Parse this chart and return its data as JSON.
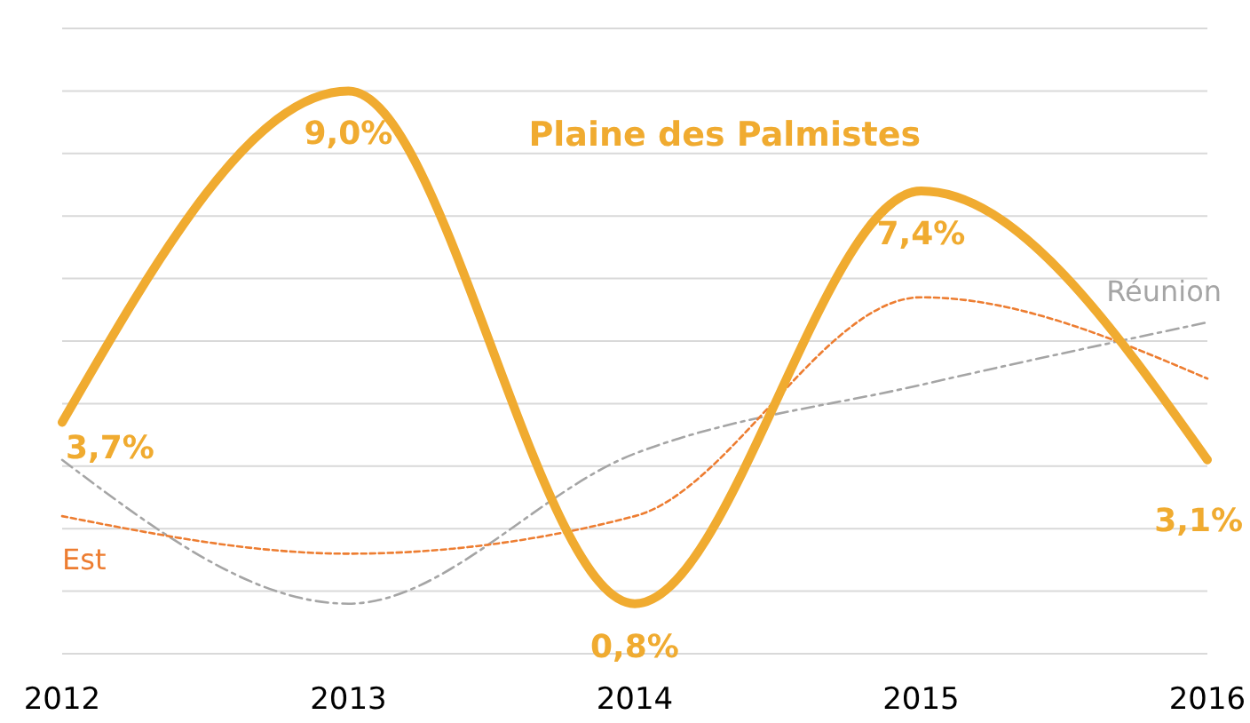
{
  "chart_data": {
    "type": "line",
    "categories": [
      "2012",
      "2013",
      "2014",
      "2015",
      "2016"
    ],
    "series": [
      {
        "name": "Réunion",
        "color": "#a5a5a5",
        "line_style": "dashed",
        "values": [
          3.1,
          0.8,
          3.2,
          4.3,
          5.3
        ]
      },
      {
        "name": "Est",
        "color": "#ed7d31",
        "line_style": "dotted",
        "values": [
          2.2,
          1.6,
          2.2,
          5.7,
          4.4
        ]
      },
      {
        "name": "Plaine des Palmistes",
        "color": "#f0ab30",
        "line_style": "solid",
        "values": [
          3.7,
          9.0,
          0.8,
          7.4,
          3.1
        ],
        "value_labels": [
          "3,7%",
          "9,0%",
          "0,8%",
          "7,4%",
          "3,1%"
        ]
      }
    ],
    "ylim": [
      0,
      10
    ],
    "yticks": [
      {
        "value": 0,
        "label": null
      },
      {
        "value": 1,
        "label": null
      },
      {
        "value": 2,
        "label": null
      },
      {
        "value": 3,
        "label": null
      },
      {
        "value": 4,
        "label": null
      },
      {
        "value": 5,
        "label": null
      },
      {
        "value": 6,
        "label": null
      },
      {
        "value": 7,
        "label": null
      },
      {
        "value": 8,
        "label": null
      },
      {
        "value": 9,
        "label": null
      },
      {
        "value": 10,
        "label": null
      }
    ],
    "grid": "y",
    "tick_labels": "x"
  }
}
